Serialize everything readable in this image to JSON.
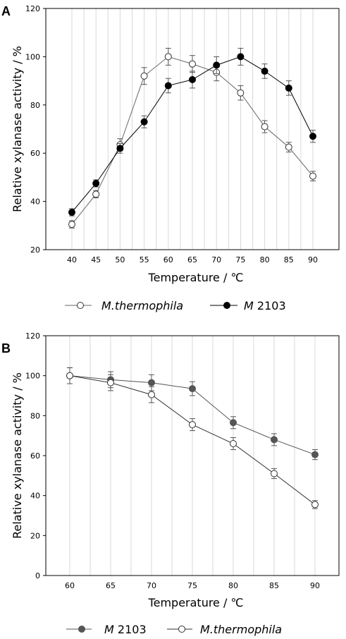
{
  "chart_data": [
    {
      "panel": "A",
      "type": "line",
      "xlabel": "Temperature / ℃",
      "ylabel": "Relative xylanase activity / %",
      "x": [
        40,
        45,
        50,
        55,
        60,
        65,
        70,
        75,
        80,
        85,
        90
      ],
      "xlim": [
        40,
        90
      ],
      "ylim": [
        20,
        120
      ],
      "yticks": [
        20,
        40,
        60,
        80,
        100,
        120
      ],
      "grid": "vertical",
      "legend_position": "bottom",
      "series": [
        {
          "name": "M.thermophila",
          "legend_italic": "M.thermophila",
          "legend_rest": "",
          "marker": "open-circle",
          "color": "#666666",
          "values": [
            30.5,
            43,
            63.5,
            92,
            100,
            97,
            93.5,
            85,
            71,
            62.5,
            50.5
          ],
          "errors": [
            1.5,
            1.5,
            2.5,
            3.5,
            3.5,
            3.5,
            3.5,
            3,
            2.5,
            2,
            2
          ]
        },
        {
          "name": "M 2103",
          "legend_italic": "M",
          "legend_rest": " 2103",
          "marker": "filled-circle",
          "color": "#000000",
          "values": [
            35.5,
            47.5,
            62,
            73,
            88,
            90.5,
            96.5,
            100,
            94,
            87,
            67
          ],
          "errors": [
            1.5,
            1.5,
            2,
            2.5,
            3,
            3.5,
            3.5,
            3.5,
            3,
            3,
            2.5
          ]
        }
      ]
    },
    {
      "panel": "B",
      "type": "line",
      "xlabel": "Temperature / ℃",
      "ylabel": "Relative xylanase activity / %",
      "x": [
        60,
        65,
        70,
        75,
        80,
        85,
        90
      ],
      "xlim": [
        60,
        90
      ],
      "ylim": [
        0,
        120
      ],
      "yticks": [
        0,
        20,
        40,
        60,
        80,
        100,
        120
      ],
      "grid": "vertical",
      "legend_position": "bottom",
      "series": [
        {
          "name": "M 2103",
          "legend_italic": "M",
          "legend_rest": " 2103",
          "marker": "filled-circle",
          "color": "#555555",
          "values": [
            100,
            98,
            96.5,
            93.5,
            76.5,
            68,
            60.5
          ],
          "errors": [
            4,
            4,
            4,
            3.5,
            3,
            3,
            2.5
          ]
        },
        {
          "name": "M.thermophila",
          "legend_italic": "M.thermophila",
          "legend_rest": "",
          "marker": "open-circle",
          "color": "#333333",
          "values": [
            100,
            96.5,
            90.5,
            75.5,
            66,
            51,
            35.5
          ],
          "errors": [
            4,
            4,
            4,
            3,
            3,
            2.5,
            2
          ]
        }
      ]
    }
  ]
}
